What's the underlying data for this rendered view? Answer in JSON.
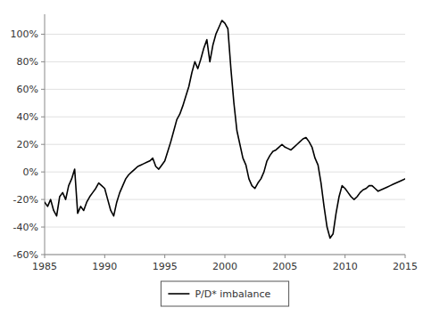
{
  "chart_data": {
    "type": "line",
    "x": [
      1985.0,
      1985.25,
      1985.5,
      1985.75,
      1986.0,
      1986.25,
      1986.5,
      1986.75,
      1987.0,
      1987.25,
      1987.5,
      1987.75,
      1988.0,
      1988.25,
      1988.5,
      1988.75,
      1989.0,
      1989.25,
      1989.5,
      1989.75,
      1990.0,
      1990.25,
      1990.5,
      1990.75,
      1991.0,
      1991.25,
      1991.5,
      1991.75,
      1992.0,
      1992.25,
      1992.5,
      1992.75,
      1993.0,
      1993.25,
      1993.5,
      1993.75,
      1994.0,
      1994.25,
      1994.5,
      1994.75,
      1995.0,
      1995.25,
      1995.5,
      1995.75,
      1996.0,
      1996.25,
      1996.5,
      1996.75,
      1997.0,
      1997.25,
      1997.5,
      1997.75,
      1998.0,
      1998.25,
      1998.5,
      1998.75,
      1999.0,
      1999.25,
      1999.5,
      1999.75,
      2000.0,
      2000.25,
      2000.5,
      2000.75,
      2001.0,
      2001.25,
      2001.5,
      2001.75,
      2002.0,
      2002.25,
      2002.5,
      2002.75,
      2003.0,
      2003.25,
      2003.5,
      2003.75,
      2004.0,
      2004.25,
      2004.5,
      2004.75,
      2005.0,
      2005.25,
      2005.5,
      2005.75,
      2006.0,
      2006.25,
      2006.5,
      2006.75,
      2007.0,
      2007.25,
      2007.5,
      2007.75,
      2008.0,
      2008.25,
      2008.5,
      2008.75,
      2009.0,
      2009.25,
      2009.5,
      2009.75,
      2010.0,
      2010.25,
      2010.5,
      2010.75,
      2011.0,
      2011.25,
      2011.5,
      2011.75,
      2012.0,
      2012.25,
      2012.5,
      2012.75,
      2013.0,
      2013.25,
      2013.5,
      2013.75,
      2014.0,
      2014.25,
      2014.5,
      2014.75,
      2015.0
    ],
    "series": [
      {
        "name": "P/D* imbalance",
        "color": "#000000",
        "values": [
          -0.22,
          -0.25,
          -0.2,
          -0.28,
          -0.32,
          -0.18,
          -0.15,
          -0.2,
          -0.1,
          -0.05,
          0.02,
          -0.3,
          -0.25,
          -0.28,
          -0.22,
          -0.18,
          -0.15,
          -0.12,
          -0.08,
          -0.1,
          -0.12,
          -0.2,
          -0.28,
          -0.32,
          -0.22,
          -0.15,
          -0.1,
          -0.05,
          -0.02,
          0.0,
          0.02,
          0.04,
          0.05,
          0.06,
          0.07,
          0.08,
          0.1,
          0.04,
          0.02,
          0.05,
          0.08,
          0.15,
          0.22,
          0.3,
          0.38,
          0.42,
          0.48,
          0.55,
          0.62,
          0.72,
          0.8,
          0.75,
          0.82,
          0.9,
          0.96,
          0.8,
          0.92,
          1.0,
          1.05,
          1.1,
          1.08,
          1.04,
          0.75,
          0.5,
          0.3,
          0.2,
          0.1,
          0.05,
          -0.05,
          -0.1,
          -0.12,
          -0.08,
          -0.05,
          0.0,
          0.08,
          0.12,
          0.15,
          0.16,
          0.18,
          0.2,
          0.18,
          0.17,
          0.16,
          0.18,
          0.2,
          0.22,
          0.24,
          0.25,
          0.22,
          0.18,
          0.1,
          0.05,
          -0.08,
          -0.25,
          -0.4,
          -0.48,
          -0.45,
          -0.3,
          -0.18,
          -0.1,
          -0.12,
          -0.15,
          -0.18,
          -0.2,
          -0.18,
          -0.15,
          -0.13,
          -0.12,
          -0.1,
          -0.1,
          -0.12,
          -0.14,
          -0.13,
          -0.12,
          -0.11,
          -0.1,
          -0.09,
          -0.08,
          -0.07,
          -0.06,
          -0.05
        ]
      }
    ],
    "xlim": [
      1985,
      2015
    ],
    "xticks": [
      1985,
      1990,
      1995,
      2000,
      2005,
      2010,
      2015
    ],
    "ylim": [
      -0.6,
      1.145
    ],
    "yticks": [
      {
        "value": -0.6,
        "label": "-60%"
      },
      {
        "value": -0.4,
        "label": "-40%"
      },
      {
        "value": -0.2,
        "label": "-20%"
      },
      {
        "value": 0.0,
        "label": "0%"
      },
      {
        "value": 0.2,
        "label": "20%"
      },
      {
        "value": 0.4,
        "label": "40%"
      },
      {
        "value": 0.6,
        "label": "60%"
      },
      {
        "value": 0.8,
        "label": "80%"
      },
      {
        "value": 1.0,
        "label": "100%"
      }
    ],
    "grid": true,
    "legend": "bottom"
  }
}
